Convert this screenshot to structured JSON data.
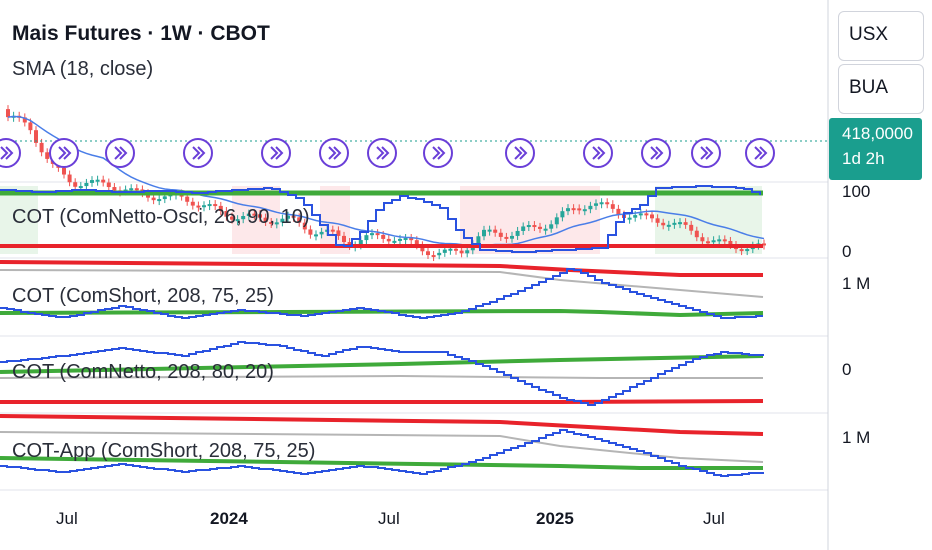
{
  "header": {
    "title": "Mais Futures · 1W · CBOT",
    "sma_label": "SMA (18, close)"
  },
  "right_panel": {
    "currency": "USX",
    "unit": "BUA",
    "last_price": "418,0000",
    "countdown": "1d 2h"
  },
  "colors": {
    "up": "#26a69a",
    "down": "#ef5350",
    "sma": "#4a7ee8",
    "cot_line": "#2a52e0",
    "upper_band": "#e8232b",
    "lower_band": "#3faa3a",
    "mid_band": "#b5b5b5",
    "marker": "#6a3fd8",
    "price_tag": "#1a9e8e"
  },
  "chart_data": [
    {
      "type": "candlestick",
      "title": "Mais Futures · 1W · CBOT",
      "x_ticks": [
        "Jul",
        "2024",
        "Jul",
        "2025",
        "Jul"
      ],
      "last_value": "418,0000",
      "overlay": "SMA (18, close)",
      "close_path": [
        600,
        590,
        540,
        515,
        508,
        505,
        500,
        498,
        490,
        478,
        470,
        470,
        462,
        458,
        445,
        445,
        432,
        436,
        432,
        425,
        418,
        418,
        438,
        440,
        452,
        458,
        470,
        482,
        478,
        470,
        460,
        450,
        440,
        432,
        425,
        418
      ]
    },
    {
      "type": "line",
      "title": "COT (ComNetto-Osci, 26, 90, 10)",
      "ylim": [
        0,
        100
      ],
      "scale_labels": [
        "100",
        "0"
      ],
      "levels": {
        "upper": 90,
        "lower": 10
      }
    },
    {
      "type": "line",
      "title": "COT (ComShort, 208, 75, 25)",
      "scale_labels": [
        "1 M"
      ]
    },
    {
      "type": "line",
      "title": "COT (ComNetto, 208, 80, 20)",
      "scale_labels": [
        "0"
      ]
    },
    {
      "type": "line",
      "title": "COT-App (ComShort, 208, 75, 25)",
      "scale_labels": [
        "1 M"
      ]
    }
  ]
}
